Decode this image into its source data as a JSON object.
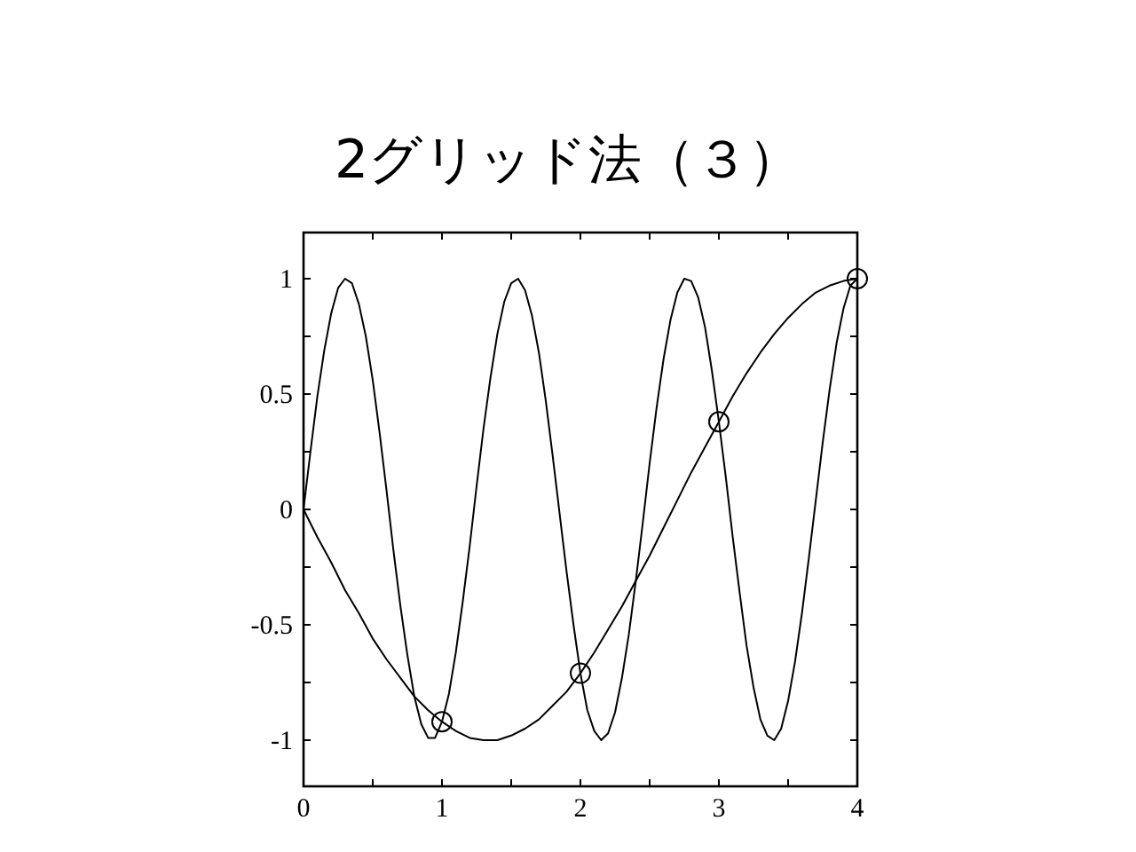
{
  "chart_data": {
    "type": "line",
    "title": "2グリッド法（３）",
    "xlim": [
      0,
      4
    ],
    "ylim": [
      -1.2,
      1.2
    ],
    "xticks": [
      0,
      {
        "value": 0.5,
        "label": null
      },
      1,
      {
        "value": 1.5,
        "label": null
      },
      2,
      {
        "value": 2.5,
        "label": null
      },
      3,
      {
        "value": 3.5,
        "label": null
      },
      4
    ],
    "yticks": [
      -1,
      {
        "value": -0.75,
        "label": null
      },
      -0.5,
      {
        "value": -0.25,
        "label": null
      },
      0,
      {
        "value": 0.25,
        "label": null
      },
      0.5,
      {
        "value": 0.75,
        "label": null
      },
      1
    ],
    "series": [
      {
        "color": "#000000",
        "x": [
          0,
          0.05,
          0.1,
          0.15,
          0.2,
          0.25,
          0.3,
          0.35,
          0.4,
          0.45,
          0.5,
          0.55,
          0.6,
          0.65,
          0.7,
          0.75,
          0.8,
          0.85,
          0.9,
          0.95,
          1,
          1.05,
          1.1,
          1.15,
          1.2,
          1.25,
          1.3,
          1.35,
          1.4,
          1.45,
          1.5,
          1.55,
          1.6,
          1.65,
          1.7,
          1.75,
          1.8,
          1.85,
          1.9,
          1.95,
          2,
          2.05,
          2.1,
          2.15,
          2.2,
          2.25,
          2.3,
          2.35,
          2.4,
          2.45,
          2.5,
          2.55,
          2.6,
          2.65,
          2.7,
          2.75,
          2.8,
          2.85,
          2.9,
          2.95,
          3,
          3.05,
          3.1,
          3.15,
          3.2,
          3.25,
          3.3,
          3.35,
          3.4,
          3.45,
          3.5,
          3.55,
          3.6,
          3.65,
          3.7,
          3.75,
          3.8,
          3.85,
          3.9,
          3.95,
          4
        ],
        "values": [
          0,
          0.25,
          0.49,
          0.69,
          0.85,
          0.96,
          1.0,
          0.98,
          0.89,
          0.75,
          0.56,
          0.33,
          0.08,
          -0.18,
          -0.42,
          -0.63,
          -0.81,
          -0.93,
          -0.99,
          -0.99,
          -0.92,
          -0.8,
          -0.62,
          -0.4,
          -0.16,
          0.1,
          0.35,
          0.57,
          0.76,
          0.9,
          0.98,
          1.0,
          0.95,
          0.84,
          0.68,
          0.47,
          0.23,
          -0.02,
          -0.27,
          -0.5,
          -0.71,
          -0.87,
          -0.96,
          -1.0,
          -0.97,
          -0.88,
          -0.73,
          -0.54,
          -0.31,
          -0.06,
          0.2,
          0.44,
          0.65,
          0.82,
          0.94,
          1.0,
          0.99,
          0.92,
          0.79,
          0.6,
          0.38,
          0.14,
          -0.12,
          -0.36,
          -0.59,
          -0.77,
          -0.91,
          -0.98,
          -1.0,
          -0.95,
          -0.83,
          -0.66,
          -0.45,
          -0.21,
          0.04,
          0.29,
          0.52,
          0.72,
          0.87,
          0.97,
          1.0
        ]
      },
      {
        "color": "#000000",
        "x": [
          0,
          0.1,
          0.2,
          0.3,
          0.4,
          0.5,
          0.6,
          0.7,
          0.8,
          0.9,
          1,
          1.1,
          1.2,
          1.3,
          1.4,
          1.5,
          1.6,
          1.7,
          1.8,
          1.9,
          2,
          2.1,
          2.2,
          2.3,
          2.4,
          2.5,
          2.6,
          2.7,
          2.8,
          2.9,
          3,
          3.1,
          3.2,
          3.3,
          3.4,
          3.5,
          3.6,
          3.7,
          3.8,
          3.9,
          4
        ],
        "values": [
          0,
          -0.12,
          -0.23,
          -0.35,
          -0.45,
          -0.56,
          -0.65,
          -0.73,
          -0.81,
          -0.87,
          -0.92,
          -0.96,
          -0.99,
          -1.0,
          -1.0,
          -0.98,
          -0.95,
          -0.91,
          -0.85,
          -0.79,
          -0.71,
          -0.62,
          -0.52,
          -0.42,
          -0.31,
          -0.2,
          -0.08,
          0.04,
          0.16,
          0.27,
          0.38,
          0.49,
          0.59,
          0.68,
          0.76,
          0.83,
          0.89,
          0.94,
          0.97,
          0.99,
          1.0
        ]
      },
      {
        "type": "scatter",
        "marker": "circle",
        "color": "#000000",
        "x": [
          1,
          2,
          3,
          4
        ],
        "values": [
          -0.92,
          -0.71,
          0.38,
          1.0
        ]
      }
    ]
  }
}
